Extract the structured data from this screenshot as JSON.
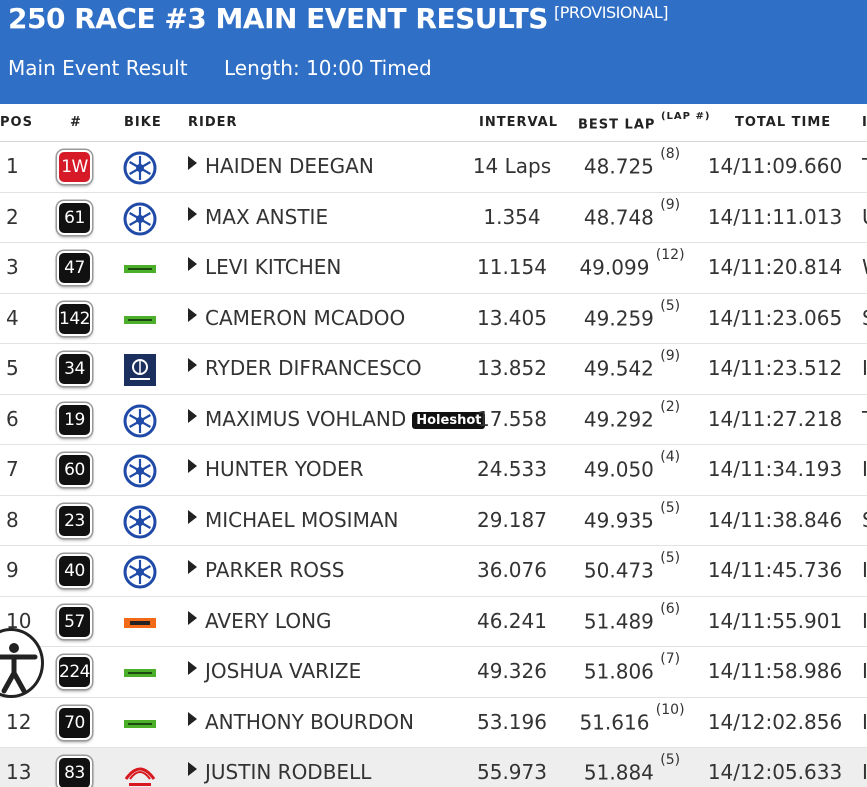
{
  "header": {
    "title": "250 RACE #3 MAIN EVENT RESULTS",
    "status": "[PROVISIONAL]",
    "result_label": "Main Event Result",
    "length_label": "Length: 10:00 Timed"
  },
  "colors": {
    "header_bg": "#2f6fc6",
    "badge_red": "#d71a28",
    "badge_black": "#111111",
    "yamaha_blue": "#1f4aa8",
    "kawasaki_green": "#4caf2a",
    "husqvarna_navy": "#1b2f5e",
    "ktm_orange": "#f26a17",
    "honda_red": "#d7191f"
  },
  "table": {
    "headers": {
      "pos": "POS",
      "num": "#",
      "bike": "BIKE",
      "rider": "RIDER",
      "interval": "INTERVAL",
      "best_lap": "BEST LAP",
      "best_lap_sub": "(LAP #)",
      "total_time": "TOTAL TIME"
    },
    "rows": [
      {
        "pos": "1",
        "num": "1W",
        "num_style": "red",
        "bike": "yamaha-icon",
        "rider": "HAIDEN DEEGAN",
        "holeshot": "",
        "interval": "14 Laps",
        "best": "48.725",
        "best_lap": "(8)",
        "total": "14/11:09.660",
        "extra": "T"
      },
      {
        "pos": "2",
        "num": "61",
        "num_style": "black",
        "bike": "yamaha-icon",
        "rider": "MAX ANSTIE",
        "holeshot": "",
        "interval": "1.354",
        "best": "48.748",
        "best_lap": "(9)",
        "total": "14/11:11.013",
        "extra": "U"
      },
      {
        "pos": "3",
        "num": "47",
        "num_style": "black",
        "bike": "kawasaki-icon",
        "rider": "LEVI KITCHEN",
        "holeshot": "",
        "interval": "11.154",
        "best": "49.099",
        "best_lap": "(12)",
        "total": "14/11:20.814",
        "extra": "W"
      },
      {
        "pos": "4",
        "num": "142",
        "num_style": "black",
        "bike": "kawasaki-icon",
        "rider": "CAMERON MCADOO",
        "holeshot": "",
        "interval": "13.405",
        "best": "49.259",
        "best_lap": "(5)",
        "total": "14/11:23.065",
        "extra": "S"
      },
      {
        "pos": "5",
        "num": "34",
        "num_style": "black",
        "bike": "husqvarna-icon",
        "rider": "RYDER DIFRANCESCO",
        "holeshot": "",
        "interval": "13.852",
        "best": "49.542",
        "best_lap": "(9)",
        "total": "14/11:23.512",
        "extra": "I"
      },
      {
        "pos": "6",
        "num": "19",
        "num_style": "black",
        "bike": "yamaha-icon",
        "rider": "MAXIMUS VOHLAND",
        "holeshot": "Holeshot",
        "interval": "17.558",
        "best": "49.292",
        "best_lap": "(2)",
        "total": "14/11:27.218",
        "extra": "T"
      },
      {
        "pos": "7",
        "num": "60",
        "num_style": "black",
        "bike": "yamaha-icon",
        "rider": "HUNTER YODER",
        "holeshot": "",
        "interval": "24.533",
        "best": "49.050",
        "best_lap": "(4)",
        "total": "14/11:34.193",
        "extra": "I"
      },
      {
        "pos": "8",
        "num": "23",
        "num_style": "black",
        "bike": "yamaha-icon",
        "rider": "MICHAEL MOSIMAN",
        "holeshot": "",
        "interval": "29.187",
        "best": "49.935",
        "best_lap": "(5)",
        "total": "14/11:38.846",
        "extra": "S"
      },
      {
        "pos": "9",
        "num": "40",
        "num_style": "black",
        "bike": "yamaha-icon",
        "rider": "PARKER ROSS",
        "holeshot": "",
        "interval": "36.076",
        "best": "50.473",
        "best_lap": "(5)",
        "total": "14/11:45.736",
        "extra": "I"
      },
      {
        "pos": "10",
        "num": "57",
        "num_style": "black",
        "bike": "ktm-icon",
        "rider": "AVERY LONG",
        "holeshot": "",
        "interval": "46.241",
        "best": "51.489",
        "best_lap": "(6)",
        "total": "14/11:55.901",
        "extra": "I"
      },
      {
        "pos": "",
        "num": "224",
        "num_style": "black",
        "bike": "kawasaki-icon",
        "rider": "JOSHUA VARIZE",
        "holeshot": "",
        "interval": "49.326",
        "best": "51.806",
        "best_lap": "(7)",
        "total": "14/11:58.986",
        "extra": "I"
      },
      {
        "pos": "12",
        "num": "70",
        "num_style": "black",
        "bike": "kawasaki-icon",
        "rider": "ANTHONY BOURDON",
        "holeshot": "",
        "interval": "53.196",
        "best": "51.616",
        "best_lap": "(10)",
        "total": "14/12:02.856",
        "extra": "I"
      },
      {
        "pos": "13",
        "num": "83",
        "num_style": "black",
        "bike": "honda-icon",
        "rider": "JUSTIN RODBELL",
        "holeshot": "",
        "interval": "55.973",
        "best": "51.884",
        "best_lap": "(5)",
        "total": "14/12:05.633",
        "extra": "I"
      }
    ]
  },
  "accessibility": {
    "icon": "accessibility-icon"
  }
}
